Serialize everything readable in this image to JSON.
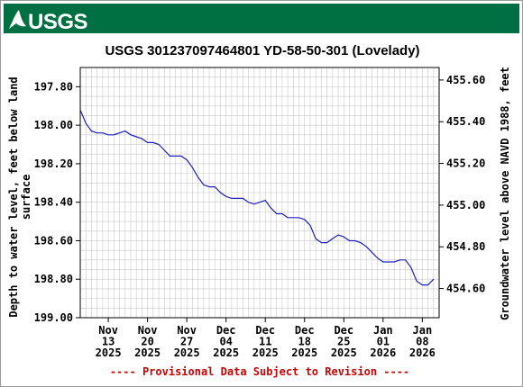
{
  "logo": {
    "text": "USGS"
  },
  "colors": {
    "banner": "#006f41",
    "line": "#1f1fbf",
    "provisional": "#cc0000",
    "grid": "#c8c8c8",
    "text": "#000000"
  },
  "chart_data": {
    "type": "line",
    "title": "USGS 301237097464801 YD-58-50-301 (Lovelady)",
    "ylabel_left": [
      "Depth to water level, feet below land",
      "surface"
    ],
    "ylabel_right": "Groundwater level above NAVD 1988, feet",
    "footer": "---- Provisional Data Subject to Revision ----",
    "x_range": [
      "2025-11-08",
      "2026-01-11"
    ],
    "y_left_range": [
      199.0,
      197.7
    ],
    "y_left_ticks": [
      "197.80",
      "198.00",
      "198.20",
      "198.40",
      "198.60",
      "198.80",
      "199.00"
    ],
    "y_right_ticks": [
      "455.60",
      "455.40",
      "455.20",
      "455.00",
      "454.80",
      "454.60"
    ],
    "y_right_range": [
      454.46,
      455.66
    ],
    "x_ticks": [
      {
        "date": "2025-11-13",
        "label": [
          "Nov",
          "13",
          "2025"
        ]
      },
      {
        "date": "2025-11-20",
        "label": [
          "Nov",
          "20",
          "2025"
        ]
      },
      {
        "date": "2025-11-27",
        "label": [
          "Nov",
          "27",
          "2025"
        ]
      },
      {
        "date": "2025-12-04",
        "label": [
          "Dec",
          "04",
          "2025"
        ]
      },
      {
        "date": "2025-12-11",
        "label": [
          "Dec",
          "11",
          "2025"
        ]
      },
      {
        "date": "2025-12-18",
        "label": [
          "Dec",
          "18",
          "2025"
        ]
      },
      {
        "date": "2025-12-25",
        "label": [
          "Dec",
          "25",
          "2025"
        ]
      },
      {
        "date": "2026-01-01",
        "label": [
          "Jan",
          "01",
          "2026"
        ]
      },
      {
        "date": "2026-01-08",
        "label": [
          "Jan",
          "08",
          "2026"
        ]
      }
    ],
    "grid": true,
    "series": [
      {
        "x": [
          "2025-11-08",
          "2025-11-09",
          "2025-11-10",
          "2025-11-11",
          "2025-11-12",
          "2025-11-13",
          "2025-11-14",
          "2025-11-15",
          "2025-11-16",
          "2025-11-17",
          "2025-11-18",
          "2025-11-19",
          "2025-11-20",
          "2025-11-21",
          "2025-11-22",
          "2025-11-23",
          "2025-11-24",
          "2025-11-25",
          "2025-11-26",
          "2025-11-27",
          "2025-11-28",
          "2025-11-29",
          "2025-11-30",
          "2025-12-01",
          "2025-12-02",
          "2025-12-03",
          "2025-12-04",
          "2025-12-05",
          "2025-12-06",
          "2025-12-07",
          "2025-12-08",
          "2025-12-09",
          "2025-12-10",
          "2025-12-11",
          "2025-12-12",
          "2025-12-13",
          "2025-12-14",
          "2025-12-15",
          "2025-12-16",
          "2025-12-17",
          "2025-12-18",
          "2025-12-19",
          "2025-12-20",
          "2025-12-21",
          "2025-12-22",
          "2025-12-23",
          "2025-12-24",
          "2025-12-25",
          "2025-12-26",
          "2025-12-27",
          "2025-12-28",
          "2025-12-29",
          "2025-12-30",
          "2025-12-31",
          "2026-01-01",
          "2026-01-02",
          "2026-01-03",
          "2026-01-04",
          "2026-01-05",
          "2026-01-06",
          "2026-01-07",
          "2026-01-08",
          "2026-01-09",
          "2026-01-10"
        ],
        "y": [
          197.92,
          197.99,
          198.03,
          198.04,
          198.04,
          198.05,
          198.05,
          198.04,
          198.03,
          198.05,
          198.06,
          198.07,
          198.09,
          198.09,
          198.1,
          198.13,
          198.16,
          198.16,
          198.16,
          198.18,
          198.22,
          198.27,
          198.31,
          198.32,
          198.32,
          198.35,
          198.37,
          198.38,
          198.38,
          198.38,
          198.4,
          198.41,
          198.4,
          198.39,
          198.43,
          198.46,
          198.46,
          198.48,
          198.48,
          198.48,
          198.49,
          198.52,
          198.59,
          198.61,
          198.61,
          198.59,
          198.57,
          198.58,
          198.6,
          198.6,
          198.61,
          198.63,
          198.66,
          198.69,
          198.71,
          198.71,
          198.71,
          198.7,
          198.7,
          198.74,
          198.81,
          198.83,
          198.83,
          198.8
        ]
      }
    ]
  }
}
